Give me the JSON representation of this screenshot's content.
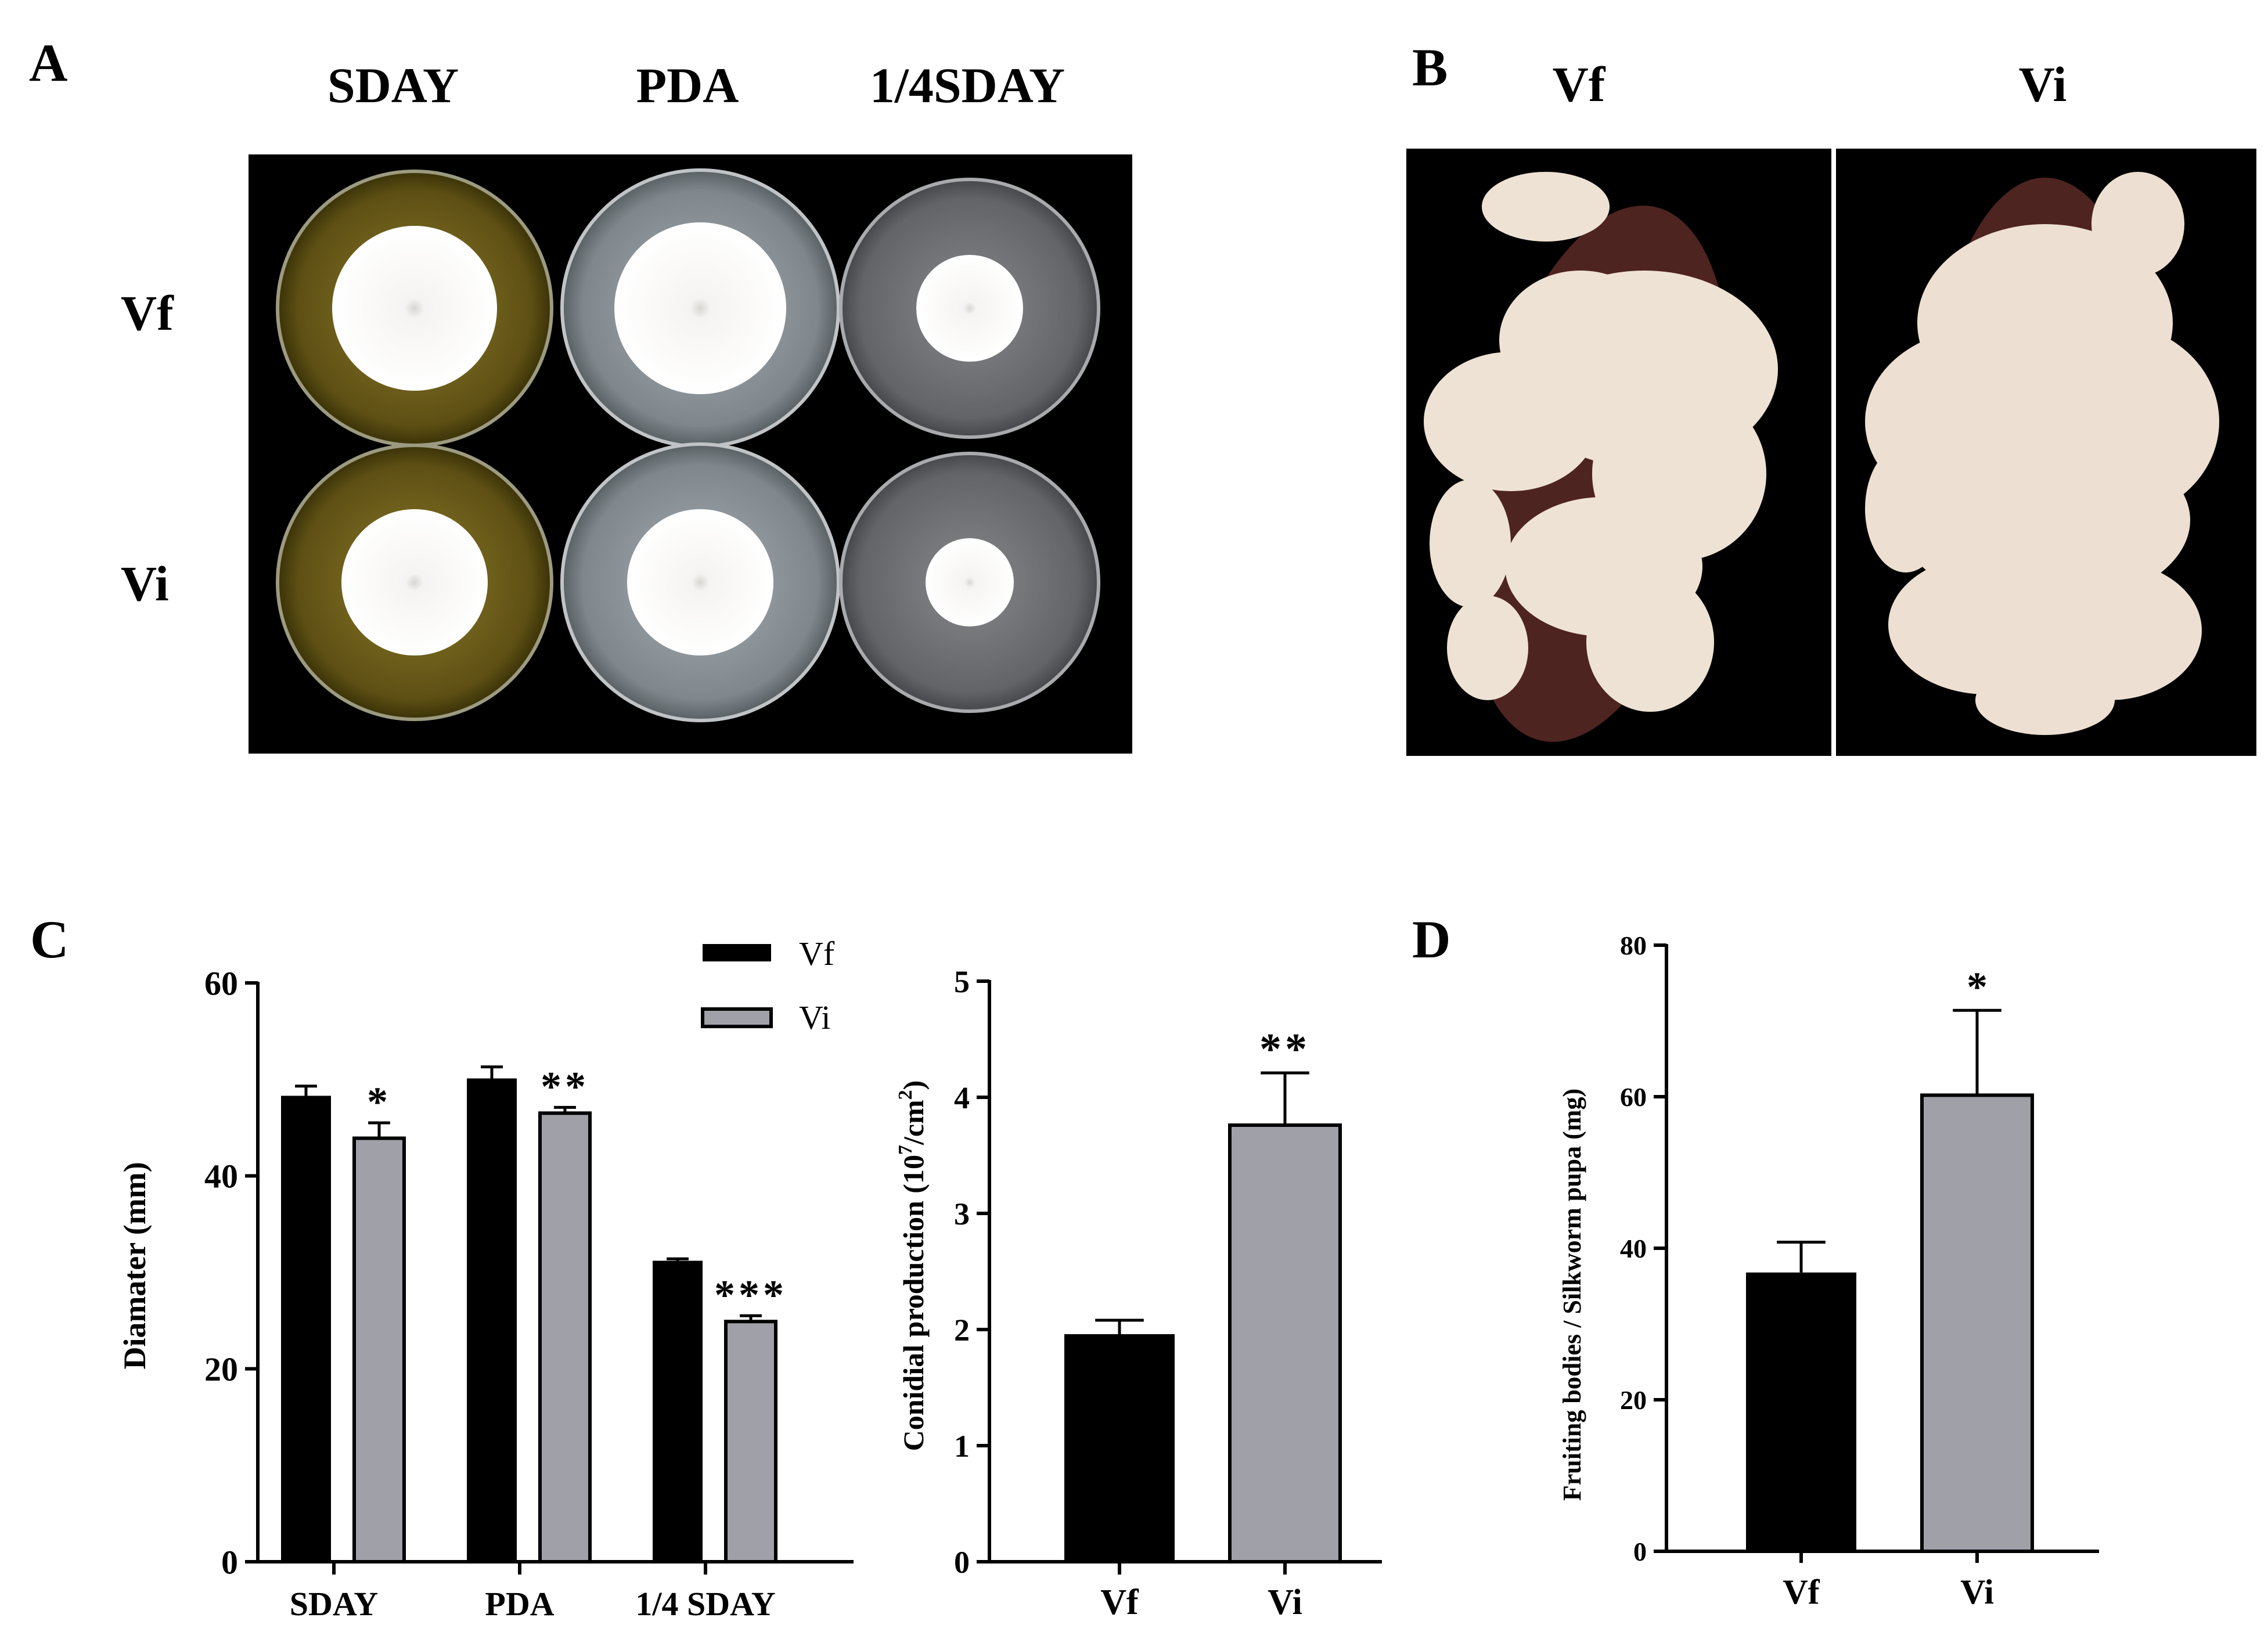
{
  "panels": {
    "a": {
      "letter": "A",
      "columns": [
        "SDAY",
        "PDA",
        "1/4SDAY"
      ],
      "rows": [
        "Vf",
        "Vi"
      ]
    },
    "b": {
      "letter": "B",
      "labels": [
        "Vf",
        "Vi"
      ]
    },
    "c": {
      "letter": "C"
    },
    "d": {
      "letter": "D"
    }
  },
  "colors": {
    "vf": "#000000",
    "vi": "#a0a0a8",
    "photo_bg": "#000000",
    "plate_sday": "#6a5a1c",
    "plate_pda": "#8c949a",
    "plate_quarter": "#6e7074",
    "colony": "#f2f0ee",
    "stroma": "#efe4d8",
    "pupa": "#5a2a24"
  },
  "chart_data": [
    {
      "id": "diameter",
      "type": "bar",
      "title": "",
      "xlabel": "",
      "ylabel": "Diamater (mm)",
      "categories": [
        "SDAY",
        "PDA",
        "1/4 SDAY"
      ],
      "series": [
        {
          "name": "Vf",
          "values": [
            48.3,
            50.1,
            31.2
          ],
          "errors": [
            1.0,
            1.2,
            0.2
          ]
        },
        {
          "name": "Vi",
          "values": [
            43.9,
            46.5,
            24.9
          ],
          "errors": [
            1.6,
            0.6,
            0.6
          ]
        }
      ],
      "significance": [
        "*",
        "**",
        "***"
      ],
      "ylim": [
        0,
        60
      ],
      "yticks": [
        0,
        20,
        40,
        60
      ],
      "legend": {
        "placement": "top-right",
        "entries": [
          "Vf",
          "Vi"
        ]
      }
    },
    {
      "id": "conidia",
      "type": "bar",
      "title": "",
      "xlabel": "",
      "ylabel": "Conidial production (10⁷/cm²)",
      "categories": [
        "Vf",
        "Vi"
      ],
      "values": [
        1.96,
        3.76
      ],
      "errors": [
        0.12,
        0.45
      ],
      "significance": [
        "",
        "**"
      ],
      "ylim": [
        0,
        5
      ],
      "yticks": [
        0,
        1,
        2,
        3,
        4,
        5
      ]
    },
    {
      "id": "fruiting",
      "type": "bar",
      "title": "",
      "xlabel": "",
      "ylabel": "Fruiting bodies / Silkworm pupa (mg)",
      "categories": [
        "Vf",
        "Vi"
      ],
      "values": [
        36.8,
        60.2
      ],
      "errors": [
        4.0,
        11.2
      ],
      "significance": [
        "",
        "*"
      ],
      "ylim": [
        0,
        80
      ],
      "yticks": [
        0,
        20,
        40,
        60,
        80
      ]
    }
  ]
}
